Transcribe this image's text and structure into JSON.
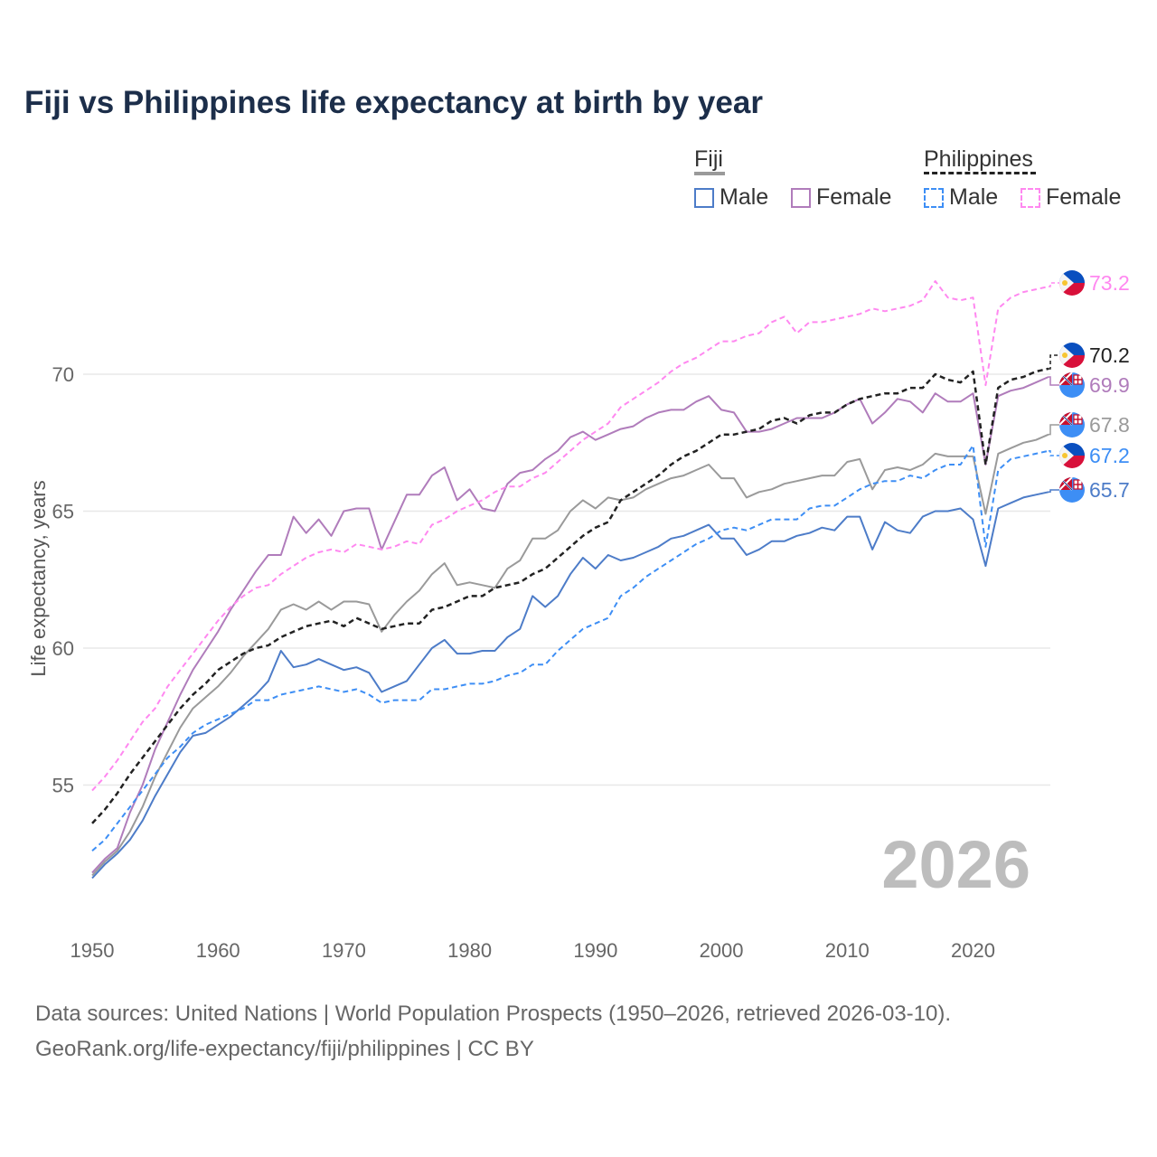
{
  "chart_data": {
    "type": "line",
    "title": "Fiji vs Philippines life expectancy at birth by year",
    "xlabel": "",
    "ylabel": "Life expectancy, years",
    "xlim": [
      1950,
      2026
    ],
    "ylim": [
      50.3,
      75
    ],
    "x_ticks": [
      1950,
      1960,
      1970,
      1980,
      1990,
      2000,
      2010,
      2020
    ],
    "y_ticks": [
      55,
      60,
      65,
      70
    ],
    "grid": true,
    "year_watermark": "2026",
    "legend": {
      "placement": "top-right",
      "groups": [
        {
          "name": "Fiji",
          "items": [
            "Male",
            "Female"
          ]
        },
        {
          "name": "Philippines",
          "items": [
            "Male",
            "Female"
          ]
        }
      ]
    },
    "x_start": 1950,
    "series": [
      {
        "key": "fiji_total",
        "country": "Fiji",
        "name": "Fiji",
        "color": "#9a9a9a",
        "dashed": false,
        "end_label": "67.8",
        "flag": "fiji",
        "values": [
          51.7,
          52.2,
          52.6,
          53.3,
          54.2,
          55.3,
          56.2,
          57.1,
          57.8,
          58.2,
          58.6,
          59.1,
          59.7,
          60.2,
          60.7,
          61.4,
          61.6,
          61.4,
          61.7,
          61.4,
          61.7,
          61.7,
          61.6,
          60.6,
          61.2,
          61.7,
          62.1,
          62.7,
          63.1,
          62.3,
          62.4,
          62.3,
          62.2,
          62.9,
          63.2,
          64.0,
          64.0,
          64.3,
          65.0,
          65.4,
          65.1,
          65.5,
          65.4,
          65.5,
          65.8,
          66.0,
          66.2,
          66.3,
          66.5,
          66.7,
          66.2,
          66.2,
          65.5,
          65.7,
          65.8,
          66.0,
          66.1,
          66.2,
          66.3,
          66.3,
          66.8,
          66.9,
          65.8,
          66.5,
          66.6,
          66.5,
          66.7,
          67.1,
          67.0,
          67.0,
          67.0,
          64.9,
          67.1,
          67.3,
          67.5,
          67.6,
          67.8
        ]
      },
      {
        "key": "fiji_male",
        "country": "Fiji",
        "name": "Male",
        "color": "#4d7cc8",
        "dashed": false,
        "end_label": "65.7",
        "flag": "fiji",
        "values": [
          51.6,
          52.1,
          52.5,
          53.0,
          53.7,
          54.6,
          55.4,
          56.2,
          56.8,
          56.9,
          57.2,
          57.5,
          57.9,
          58.3,
          58.8,
          59.9,
          59.3,
          59.4,
          59.6,
          59.4,
          59.2,
          59.3,
          59.1,
          58.4,
          58.6,
          58.8,
          59.4,
          60.0,
          60.3,
          59.8,
          59.8,
          59.9,
          59.9,
          60.4,
          60.7,
          61.9,
          61.5,
          61.9,
          62.7,
          63.3,
          62.9,
          63.4,
          63.2,
          63.3,
          63.5,
          63.7,
          64.0,
          64.1,
          64.3,
          64.5,
          64.0,
          64.0,
          63.4,
          63.6,
          63.9,
          63.9,
          64.1,
          64.2,
          64.4,
          64.3,
          64.8,
          64.8,
          63.6,
          64.6,
          64.3,
          64.2,
          64.8,
          65.0,
          65.0,
          65.1,
          64.7,
          63.0,
          65.1,
          65.3,
          65.5,
          65.6,
          65.7
        ]
      },
      {
        "key": "fiji_female",
        "country": "Fiji",
        "name": "Female",
        "color": "#b07cbb",
        "dashed": false,
        "end_label": "69.9",
        "flag": "fiji",
        "values": [
          51.8,
          52.3,
          52.7,
          54.0,
          55.0,
          56.3,
          57.3,
          58.3,
          59.2,
          59.9,
          60.6,
          61.4,
          62.1,
          62.8,
          63.4,
          63.4,
          64.8,
          64.2,
          64.7,
          64.1,
          65.0,
          65.1,
          65.1,
          63.6,
          64.6,
          65.6,
          65.6,
          66.3,
          66.6,
          65.4,
          65.8,
          65.1,
          65.0,
          66.0,
          66.4,
          66.5,
          66.9,
          67.2,
          67.7,
          67.9,
          67.6,
          67.8,
          68.0,
          68.1,
          68.4,
          68.6,
          68.7,
          68.7,
          69.0,
          69.2,
          68.7,
          68.6,
          67.9,
          67.9,
          68.0,
          68.2,
          68.4,
          68.4,
          68.4,
          68.6,
          68.9,
          69.1,
          68.2,
          68.6,
          69.1,
          69.0,
          68.6,
          69.3,
          69.0,
          69.0,
          69.3,
          66.7,
          69.2,
          69.4,
          69.5,
          69.7,
          69.9
        ]
      },
      {
        "key": "ph_total",
        "country": "Philippines",
        "name": "Philippines",
        "color": "#222222",
        "dashed": true,
        "end_label": "70.2",
        "flag": "philippines",
        "values": [
          53.6,
          54.1,
          54.7,
          55.4,
          56.0,
          56.6,
          57.2,
          57.8,
          58.3,
          58.7,
          59.2,
          59.5,
          59.8,
          60.0,
          60.1,
          60.4,
          60.6,
          60.8,
          60.9,
          61.0,
          60.8,
          61.1,
          60.9,
          60.7,
          60.8,
          60.9,
          60.9,
          61.4,
          61.5,
          61.7,
          61.9,
          61.9,
          62.2,
          62.3,
          62.4,
          62.7,
          62.9,
          63.3,
          63.7,
          64.1,
          64.4,
          64.6,
          65.4,
          65.7,
          66.0,
          66.3,
          66.7,
          67.0,
          67.2,
          67.5,
          67.8,
          67.8,
          67.9,
          68.0,
          68.3,
          68.4,
          68.2,
          68.5,
          68.6,
          68.6,
          68.9,
          69.1,
          69.2,
          69.3,
          69.3,
          69.5,
          69.5,
          70.0,
          69.8,
          69.7,
          70.1,
          66.7,
          69.5,
          69.8,
          69.9,
          70.1,
          70.2
        ]
      },
      {
        "key": "ph_male",
        "country": "Philippines",
        "name": "Male",
        "color": "#3d8ef5",
        "dashed": true,
        "end_label": "67.2",
        "flag": "philippines",
        "values": [
          52.6,
          53.0,
          53.6,
          54.2,
          54.8,
          55.4,
          56.0,
          56.4,
          56.9,
          57.2,
          57.4,
          57.6,
          57.8,
          58.1,
          58.1,
          58.3,
          58.4,
          58.5,
          58.6,
          58.5,
          58.4,
          58.5,
          58.3,
          58.0,
          58.1,
          58.1,
          58.1,
          58.5,
          58.5,
          58.6,
          58.7,
          58.7,
          58.8,
          59.0,
          59.1,
          59.4,
          59.4,
          59.9,
          60.3,
          60.7,
          60.9,
          61.1,
          61.9,
          62.2,
          62.6,
          62.9,
          63.2,
          63.5,
          63.8,
          64.0,
          64.3,
          64.4,
          64.3,
          64.5,
          64.7,
          64.7,
          64.7,
          65.1,
          65.2,
          65.2,
          65.5,
          65.8,
          66.0,
          66.1,
          66.1,
          66.3,
          66.2,
          66.5,
          66.7,
          66.7,
          67.4,
          63.7,
          66.5,
          66.9,
          67.0,
          67.1,
          67.2
        ]
      },
      {
        "key": "ph_female",
        "country": "Philippines",
        "name": "Female",
        "color": "#ff88f0",
        "dashed": true,
        "end_label": "73.2",
        "flag": "philippines",
        "values": [
          54.8,
          55.3,
          55.9,
          56.6,
          57.3,
          57.8,
          58.6,
          59.2,
          59.8,
          60.4,
          61.0,
          61.5,
          61.9,
          62.2,
          62.3,
          62.7,
          63.0,
          63.3,
          63.5,
          63.6,
          63.5,
          63.8,
          63.7,
          63.6,
          63.7,
          63.9,
          63.8,
          64.5,
          64.7,
          65.0,
          65.2,
          65.4,
          65.7,
          65.9,
          65.9,
          66.2,
          66.4,
          66.8,
          67.2,
          67.6,
          67.9,
          68.2,
          68.8,
          69.1,
          69.4,
          69.7,
          70.1,
          70.4,
          70.6,
          70.9,
          71.2,
          71.2,
          71.4,
          71.5,
          71.9,
          72.1,
          71.5,
          71.9,
          71.9,
          72.0,
          72.1,
          72.2,
          72.4,
          72.3,
          72.4,
          72.5,
          72.7,
          73.4,
          72.8,
          72.7,
          72.8,
          69.6,
          72.4,
          72.8,
          73.0,
          73.1,
          73.2
        ]
      }
    ]
  },
  "legend_labels": {
    "fiji": "Fiji",
    "philippines": "Philippines",
    "fiji_male": "Male",
    "fiji_female": "Female",
    "ph_male": "Male",
    "ph_female": "Female"
  },
  "footer": {
    "line1": "Data sources: United Nations | World Population Prospects (1950–2026, retrieved 2026-03-10).",
    "line2": "GeoRank.org/life-expectancy/fiji/philippines | CC BY"
  }
}
